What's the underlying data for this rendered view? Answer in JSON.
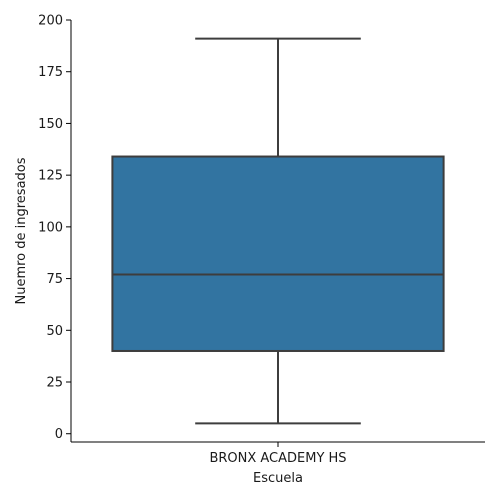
{
  "chart_data": {
    "type": "box",
    "xlabel": "Escuela",
    "ylabel": "Nuemro de ingresados",
    "categories": [
      "BRONX ACADEMY HS"
    ],
    "boxes": [
      {
        "category": "BRONX ACADEMY HS",
        "min": 5,
        "q1": 40,
        "median": 77,
        "q3": 134,
        "max": 191
      }
    ],
    "ylim": [
      -4,
      200
    ],
    "yticks": [
      0,
      25,
      50,
      75,
      100,
      125,
      150,
      175,
      200
    ],
    "grid": false,
    "box_color": "#3274a1",
    "line_color": "#3d3d3d"
  }
}
